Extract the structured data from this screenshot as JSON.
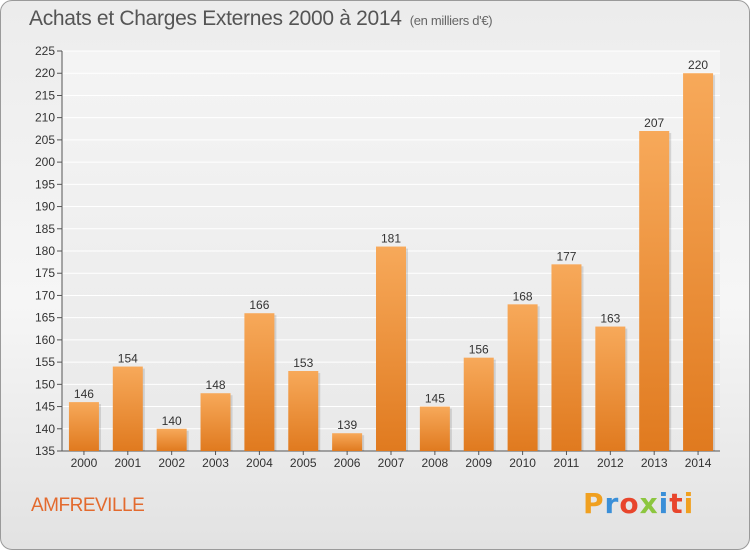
{
  "title": "Achats et Charges Externes 2000 à 2014",
  "unit": "(en milliers d'€)",
  "place": "AMFREVILLE",
  "logo": "Proxiti",
  "colors": {
    "bar_top": "#f7a95a",
    "bar_bottom": "#e07a1f",
    "accent": "#e36a2e"
  },
  "chart_data": {
    "type": "bar",
    "categories": [
      "2000",
      "2001",
      "2002",
      "2003",
      "2004",
      "2005",
      "2006",
      "2007",
      "2008",
      "2009",
      "2010",
      "2011",
      "2012",
      "2013",
      "2014"
    ],
    "values": [
      146,
      154,
      140,
      148,
      166,
      153,
      139,
      181,
      145,
      156,
      168,
      177,
      163,
      207,
      220
    ],
    "ylim": [
      135,
      225
    ],
    "yticks": [
      135,
      140,
      145,
      150,
      155,
      160,
      165,
      170,
      175,
      180,
      185,
      190,
      195,
      200,
      205,
      210,
      215,
      220,
      225
    ],
    "grid": true,
    "xlabel": "",
    "ylabel": ""
  }
}
